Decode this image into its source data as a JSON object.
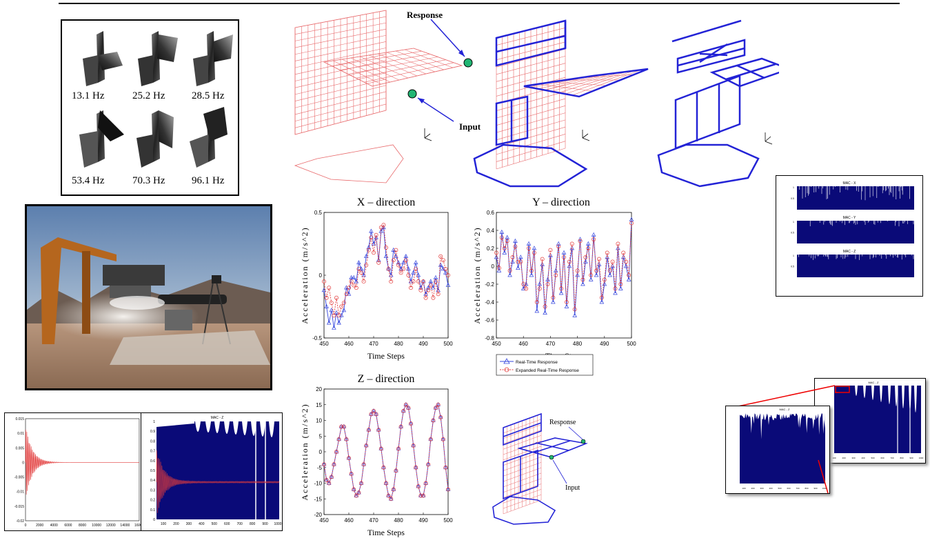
{
  "modes": {
    "labels": [
      "13.1 Hz",
      "25.2 Hz",
      "28.5 Hz",
      "53.4 Hz",
      "70.3 Hz",
      "96.1 Hz"
    ]
  },
  "fem": {
    "response_label": "Response",
    "input_label": "Input",
    "small_response_label": "Response",
    "small_input_label": "Input",
    "colors": {
      "fine": "#e8696b",
      "coarse": "#2323d6",
      "marker": "#22b573"
    }
  },
  "mac_panel": {
    "titles": [
      "MAC - X",
      "MAC - Y",
      "MAC - Z"
    ],
    "bar_color": "#0a0a78"
  },
  "mac_zoom": {
    "back_title": "MAC - Z",
    "front_title": "MAC - Z",
    "front_xticks": [
      "100",
      "200",
      "300",
      "400",
      "500",
      "600",
      "700",
      "800",
      "900",
      "1000"
    ]
  },
  "decay": {
    "yticks": [
      "0.015",
      "0.01",
      "0.005",
      "0",
      "-0.005",
      "-0.01",
      "-0.015",
      "-0.02"
    ],
    "xticks": [
      "0",
      "2000",
      "4000",
      "6000",
      "8000",
      "10000",
      "12000",
      "14000",
      "16000"
    ],
    "line_color": "#e23b3b"
  },
  "mac_z_overlay": {
    "title": "MAC - Z",
    "yticks": [
      "1",
      "0.9",
      "0.8",
      "0.7",
      "0.6",
      "0.5",
      "0.4",
      "0.3",
      "0.2",
      "0.1",
      "0"
    ],
    "xticks": [
      "100",
      "200",
      "300",
      "400",
      "500",
      "600",
      "700",
      "800",
      "900",
      "1000"
    ]
  },
  "chart_data": [
    {
      "type": "line",
      "title": "X – direction",
      "xlabel": "Time Steps",
      "ylabel": "Acceleration (m/s^2)",
      "xlim": [
        450,
        500
      ],
      "ylim": [
        -0.5,
        0.5
      ],
      "xticks": [
        "450",
        "460",
        "470",
        "480",
        "490",
        "500"
      ],
      "yticks": [
        "0.5",
        "0",
        "-0.5"
      ],
      "x": [
        450,
        451,
        452,
        453,
        454,
        455,
        456,
        457,
        458,
        459,
        460,
        461,
        462,
        463,
        464,
        465,
        466,
        467,
        468,
        469,
        470,
        471,
        472,
        473,
        474,
        475,
        476,
        477,
        478,
        479,
        480,
        481,
        482,
        483,
        484,
        485,
        486,
        487,
        488,
        489,
        490,
        491,
        492,
        493,
        494,
        495,
        496,
        497,
        498,
        499,
        500
      ],
      "series": [
        {
          "name": "Real-Time Response",
          "color": "#3344dd",
          "values": [
            -0.12,
            -0.25,
            -0.38,
            -0.28,
            -0.42,
            -0.3,
            -0.38,
            -0.32,
            -0.28,
            -0.1,
            -0.15,
            -0.02,
            -0.02,
            -0.05,
            0.1,
            0.05,
            0.0,
            0.15,
            0.22,
            0.35,
            0.25,
            0.3,
            0.12,
            0.35,
            0.38,
            0.15,
            0.05,
            0.0,
            0.2,
            0.15,
            0.1,
            0.05,
            0.1,
            0.15,
            0.05,
            -0.05,
            0.02,
            0.1,
            0.0,
            -0.1,
            -0.05,
            -0.15,
            -0.1,
            -0.05,
            -0.1,
            -0.02,
            -0.12,
            0.08,
            0.05,
            0.02,
            -0.08
          ]
        },
        {
          "name": "Expanded Real-Time Response",
          "color": "#e23b3b",
          "values": [
            -0.05,
            -0.18,
            -0.1,
            -0.22,
            -0.32,
            -0.18,
            -0.32,
            -0.25,
            -0.22,
            -0.15,
            -0.1,
            -0.05,
            -0.08,
            -0.1,
            0.05,
            0.02,
            -0.05,
            0.08,
            0.2,
            0.3,
            0.18,
            0.32,
            0.1,
            0.38,
            0.4,
            0.22,
            0.05,
            -0.05,
            0.12,
            0.2,
            0.08,
            0.02,
            0.05,
            0.12,
            0.0,
            -0.1,
            -0.05,
            0.05,
            -0.05,
            -0.12,
            -0.05,
            -0.18,
            -0.12,
            -0.08,
            -0.18,
            -0.05,
            -0.15,
            0.15,
            0.12,
            0.05,
            0.0
          ]
        }
      ]
    },
    {
      "type": "line",
      "title": "Y – direction",
      "xlabel": "Time Steps",
      "ylabel": "Acceleration (m/s^2)",
      "xlim": [
        450,
        500
      ],
      "ylim": [
        -0.8,
        0.6
      ],
      "xticks": [
        "450",
        "460",
        "470",
        "480",
        "490",
        "500"
      ],
      "yticks": [
        "0.6",
        "0.4",
        "0.2",
        "0",
        "-0.2",
        "-0.4",
        "-0.6",
        "-0.8"
      ],
      "x": [
        450,
        451,
        452,
        453,
        454,
        455,
        456,
        457,
        458,
        459,
        460,
        461,
        462,
        463,
        464,
        465,
        466,
        467,
        468,
        469,
        470,
        471,
        472,
        473,
        474,
        475,
        476,
        477,
        478,
        479,
        480,
        481,
        482,
        483,
        484,
        485,
        486,
        487,
        488,
        489,
        490,
        491,
        492,
        493,
        494,
        495,
        496,
        497,
        498,
        499,
        500
      ],
      "series": [
        {
          "name": "Real-Time Response",
          "color": "#3344dd",
          "values": [
            0.1,
            -0.05,
            0.38,
            0.15,
            0.32,
            -0.1,
            0.05,
            0.28,
            -0.02,
            0.1,
            -0.25,
            -0.2,
            0.25,
            -0.1,
            0.2,
            -0.5,
            -0.2,
            0.02,
            -0.52,
            -0.15,
            0.12,
            -0.4,
            -0.05,
            0.25,
            -0.3,
            0.15,
            -0.45,
            0.0,
            0.2,
            -0.55,
            -0.1,
            0.3,
            -0.2,
            0.05,
            0.25,
            -0.15,
            0.35,
            -0.1,
            0.02,
            -0.4,
            -0.2,
            0.1,
            -0.1,
            0.0,
            -0.3,
            0.2,
            -0.25,
            0.1,
            0.0,
            -0.15,
            0.52
          ]
        },
        {
          "name": "Expanded Real-Time Response",
          "color": "#e23b3b",
          "values": [
            0.15,
            -0.02,
            0.32,
            0.2,
            0.28,
            -0.05,
            0.1,
            0.22,
            0.05,
            0.05,
            -0.2,
            -0.25,
            0.2,
            -0.05,
            0.15,
            -0.4,
            -0.25,
            0.08,
            -0.45,
            -0.2,
            0.18,
            -0.35,
            -0.1,
            0.22,
            -0.25,
            0.1,
            -0.4,
            0.05,
            0.25,
            -0.48,
            -0.05,
            0.28,
            -0.15,
            0.1,
            0.2,
            -0.1,
            0.3,
            -0.05,
            0.08,
            -0.35,
            -0.15,
            0.15,
            -0.05,
            0.05,
            -0.25,
            0.25,
            -0.2,
            0.15,
            0.05,
            -0.1,
            0.48
          ]
        }
      ]
    },
    {
      "type": "line",
      "title": "Z – direction",
      "xlabel": "Time Steps",
      "ylabel": "Acceleration (m/s^2)",
      "xlim": [
        450,
        500
      ],
      "ylim": [
        -20,
        20
      ],
      "xticks": [
        "450",
        "460",
        "470",
        "480",
        "490",
        "500"
      ],
      "yticks": [
        "20",
        "15",
        "10",
        "5",
        "0",
        "-5",
        "-10",
        "-15",
        "-20"
      ],
      "x": [
        450,
        451,
        452,
        453,
        454,
        455,
        456,
        457,
        458,
        459,
        460,
        461,
        462,
        463,
        464,
        465,
        466,
        467,
        468,
        469,
        470,
        471,
        472,
        473,
        474,
        475,
        476,
        477,
        478,
        479,
        480,
        481,
        482,
        483,
        484,
        485,
        486,
        487,
        488,
        489,
        490,
        491,
        492,
        493,
        494,
        495,
        496,
        497,
        498,
        499,
        500
      ],
      "series": [
        {
          "name": "Real-Time Response",
          "color": "#3344dd",
          "values": [
            -4,
            -9,
            -10,
            -8,
            -4,
            0,
            4,
            8,
            8,
            4,
            -2,
            -7,
            -12,
            -14,
            -13,
            -10,
            -4,
            2,
            7,
            12,
            13,
            12,
            7,
            1,
            -5,
            -10,
            -14,
            -15,
            -12,
            -6,
            1,
            8,
            13,
            15,
            14,
            9,
            2,
            -5,
            -11,
            -14,
            -14,
            -10,
            -4,
            4,
            10,
            14,
            15,
            11,
            4,
            -5,
            -12
          ]
        },
        {
          "name": "Expanded Real-Time Response",
          "color": "#e23b3b",
          "values": [
            -4,
            -9,
            -10,
            -8,
            -4,
            0,
            4,
            8,
            8,
            4,
            -2,
            -7,
            -12,
            -14,
            -13,
            -10,
            -4,
            2,
            7,
            12,
            13,
            12,
            7,
            1,
            -5,
            -10,
            -14,
            -15,
            -12,
            -6,
            1,
            8,
            13,
            15,
            14,
            9,
            2,
            -5,
            -11,
            -14,
            -14,
            -10,
            -4,
            4,
            10,
            14,
            15,
            11,
            4,
            -5,
            -12
          ]
        }
      ]
    }
  ]
}
